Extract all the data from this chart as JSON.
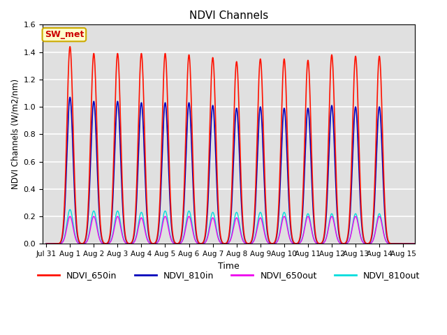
{
  "title": "NDVI Channels",
  "xlabel": "Time",
  "ylabel": "NDVI Channels (W/m2/nm)",
  "ylim": [
    0.0,
    1.6
  ],
  "xlim_days": [
    -0.15,
    15.5
  ],
  "background_color": "#e0e0e0",
  "grid_color": "white",
  "annotation_text": "SW_met",
  "annotation_bg": "#ffffcc",
  "annotation_edge": "#ccaa00",
  "annotation_text_color": "#cc0000",
  "series": {
    "NDVI_650in": {
      "color": "#ff1100",
      "linewidth": 1.2
    },
    "NDVI_810in": {
      "color": "#0000bb",
      "linewidth": 1.2
    },
    "NDVI_650out": {
      "color": "#ee00ee",
      "linewidth": 1.0
    },
    "NDVI_810out": {
      "color": "#00dddd",
      "linewidth": 1.0
    }
  },
  "peaks_650in": [
    1.44,
    1.39,
    1.39,
    1.39,
    1.39,
    1.38,
    1.36,
    1.33,
    1.35,
    1.35,
    1.34,
    1.38,
    1.37,
    1.37
  ],
  "peaks_810in": [
    1.07,
    1.04,
    1.04,
    1.03,
    1.03,
    1.03,
    1.01,
    0.99,
    1.0,
    0.99,
    0.99,
    1.01,
    1.0,
    1.0
  ],
  "peaks_650out": [
    0.2,
    0.2,
    0.2,
    0.19,
    0.2,
    0.2,
    0.19,
    0.19,
    0.19,
    0.2,
    0.2,
    0.2,
    0.2,
    0.2
  ],
  "peaks_810out": [
    0.25,
    0.24,
    0.24,
    0.23,
    0.24,
    0.24,
    0.23,
    0.23,
    0.23,
    0.23,
    0.22,
    0.22,
    0.22,
    0.22
  ],
  "tick_labels": [
    "Jul 31",
    "Aug 1",
    "Aug 2",
    "Aug 3",
    "Aug 4",
    "Aug 5",
    "Aug 6",
    "Aug 7",
    "Aug 8",
    "Aug 9",
    "Aug 10",
    "Aug 11",
    "Aug 12",
    "Aug 13",
    "Aug 14",
    "Aug 15"
  ],
  "tick_positions": [
    0,
    1,
    2,
    3,
    4,
    5,
    6,
    7,
    8,
    9,
    10,
    11,
    12,
    13,
    14,
    15
  ]
}
